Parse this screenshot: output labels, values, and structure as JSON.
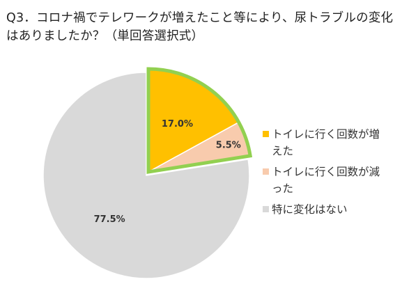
{
  "chart_data": {
    "type": "pie",
    "title": "Q3．コロナ禍でテレワークが増えたこと等により、尿トラブルの変化はありましたか？（単回答選択式）",
    "categories": [
      "トイレに行く回数が増えた",
      "トイレに行く回数が減った",
      "特に変化はない"
    ],
    "values": [
      17.0,
      5.5,
      77.5
    ],
    "data_labels": [
      "17.0%",
      "5.5%",
      "77.5%"
    ],
    "unit": "%",
    "colors": [
      "#FFC000",
      "#F8CBAD",
      "#D9D9D9"
    ],
    "highlight_color": "#92D050",
    "exploded": [
      true,
      true,
      false
    ],
    "start_angle": "12 o'clock, clockwise",
    "legend_position": "right"
  }
}
